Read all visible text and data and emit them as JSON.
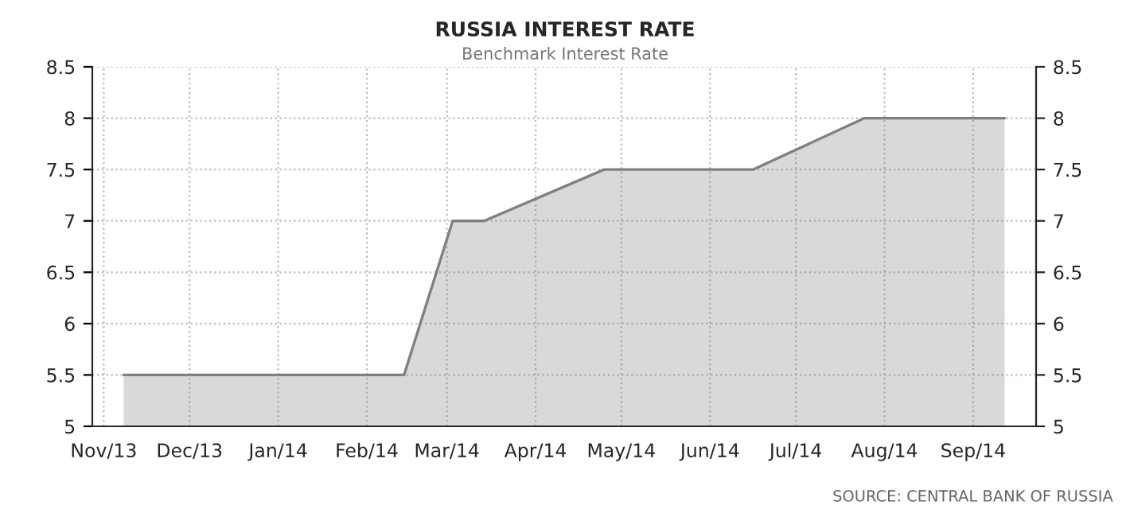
{
  "chart_data": {
    "type": "area",
    "title": "RUSSIA INTEREST RATE",
    "subtitle": "Benchmark Interest Rate",
    "annotations": [
      "SOURCE: CENTRAL BANK OF RUSSIA"
    ],
    "x": [
      "2013-11-08",
      "2014-02-14",
      "2014-03-03",
      "2014-03-14",
      "2014-04-25",
      "2014-06-16",
      "2014-07-25",
      "2014-09-12"
    ],
    "series": [
      {
        "color": "#808080",
        "values": [
          5.5,
          5.5,
          7.0,
          7.0,
          7.5,
          7.5,
          8.0,
          8.0
        ]
      }
    ],
    "xlim": [
      "2013-10-28",
      "2014-09-23"
    ],
    "xticks": [
      {
        "value": "2013-11-01",
        "label": "Nov/13"
      },
      {
        "value": "2013-12-01",
        "label": "Dec/13"
      },
      {
        "value": "2014-01-01",
        "label": "Jan/14"
      },
      {
        "value": "2014-02-01",
        "label": "Feb/14"
      },
      {
        "value": "2014-03-01",
        "label": "Mar/14"
      },
      {
        "value": "2014-04-01",
        "label": "Apr/14"
      },
      {
        "value": "2014-05-01",
        "label": "May/14"
      },
      {
        "value": "2014-06-01",
        "label": "Jun/14"
      },
      {
        "value": "2014-07-01",
        "label": "Jul/14"
      },
      {
        "value": "2014-08-01",
        "label": "Aug/14"
      },
      {
        "value": "2014-09-01",
        "label": "Sep/14"
      }
    ],
    "ylim": [
      5,
      8.5
    ],
    "yticks": [
      5,
      5.5,
      6,
      6.5,
      7,
      7.5,
      8,
      8.5
    ],
    "y2lim": [
      5,
      8.5
    ],
    "y2ticks": [
      5,
      5.5,
      6,
      6.5,
      7,
      7.5,
      8,
      8.5
    ],
    "grid": true,
    "legend": false
  }
}
